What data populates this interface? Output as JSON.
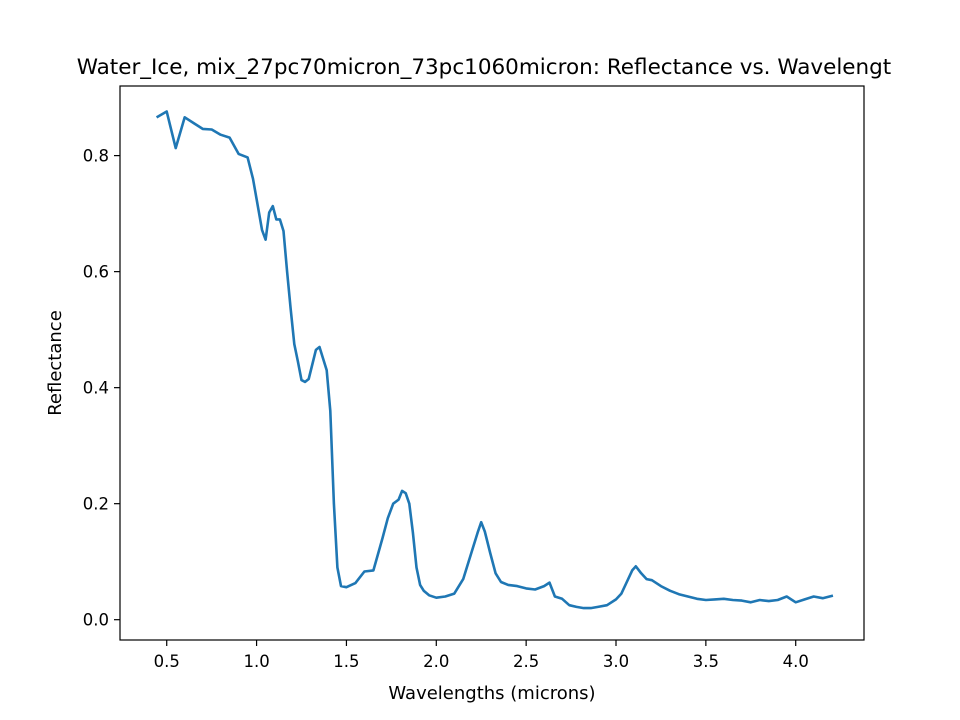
{
  "chart_data": {
    "type": "line",
    "title": "Water_Ice, mix_27pc70micron_73pc1060micron: Reflectance vs. Wavelengt",
    "xlabel": "Wavelengths (microns)",
    "ylabel": "Reflectance",
    "xlim": [
      0.24,
      4.38
    ],
    "ylim": [
      -0.035,
      0.92
    ],
    "xticks": [
      0.5,
      1.0,
      1.5,
      2.0,
      2.5,
      3.0,
      3.5,
      4.0
    ],
    "xtick_labels": [
      "0.5",
      "1.0",
      "1.5",
      "2.0",
      "2.5",
      "3.0",
      "3.5",
      "4.0"
    ],
    "yticks": [
      0.0,
      0.2,
      0.4,
      0.6,
      0.8
    ],
    "ytick_labels": [
      "0.0",
      "0.2",
      "0.4",
      "0.6",
      "0.8"
    ],
    "grid": false,
    "line_color": "#1f77b4",
    "series": [
      {
        "x": [
          0.45,
          0.5,
          0.55,
          0.6,
          0.65,
          0.7,
          0.75,
          0.8,
          0.85,
          0.9,
          0.95,
          0.98,
          1.0,
          1.03,
          1.05,
          1.07,
          1.09,
          1.11,
          1.13,
          1.15,
          1.17,
          1.19,
          1.21,
          1.23,
          1.25,
          1.27,
          1.29,
          1.31,
          1.33,
          1.35,
          1.37,
          1.39,
          1.41,
          1.43,
          1.45,
          1.47,
          1.5,
          1.55,
          1.6,
          1.65,
          1.7,
          1.73,
          1.76,
          1.79,
          1.81,
          1.83,
          1.85,
          1.87,
          1.89,
          1.91,
          1.93,
          1.96,
          2.0,
          2.05,
          2.1,
          2.15,
          2.2,
          2.23,
          2.25,
          2.27,
          2.3,
          2.33,
          2.36,
          2.4,
          2.45,
          2.5,
          2.55,
          2.6,
          2.63,
          2.66,
          2.7,
          2.74,
          2.78,
          2.82,
          2.86,
          2.9,
          2.95,
          3.0,
          3.03,
          3.06,
          3.09,
          3.11,
          3.14,
          3.17,
          3.2,
          3.25,
          3.3,
          3.35,
          3.4,
          3.45,
          3.5,
          3.55,
          3.6,
          3.65,
          3.7,
          3.75,
          3.8,
          3.85,
          3.9,
          3.95,
          4.0,
          4.05,
          4.1,
          4.15,
          4.2
        ],
        "y": [
          0.867,
          0.876,
          0.813,
          0.866,
          0.856,
          0.846,
          0.845,
          0.836,
          0.831,
          0.803,
          0.797,
          0.76,
          0.725,
          0.672,
          0.655,
          0.702,
          0.713,
          0.69,
          0.69,
          0.67,
          0.6,
          0.535,
          0.475,
          0.445,
          0.413,
          0.41,
          0.415,
          0.44,
          0.465,
          0.47,
          0.45,
          0.43,
          0.36,
          0.2,
          0.09,
          0.058,
          0.056,
          0.063,
          0.083,
          0.085,
          0.14,
          0.175,
          0.2,
          0.207,
          0.222,
          0.218,
          0.2,
          0.15,
          0.09,
          0.06,
          0.05,
          0.042,
          0.038,
          0.04,
          0.045,
          0.07,
          0.12,
          0.15,
          0.168,
          0.152,
          0.115,
          0.08,
          0.065,
          0.06,
          0.058,
          0.054,
          0.052,
          0.058,
          0.064,
          0.04,
          0.036,
          0.025,
          0.022,
          0.02,
          0.02,
          0.022,
          0.025,
          0.035,
          0.045,
          0.065,
          0.085,
          0.092,
          0.08,
          0.07,
          0.068,
          0.058,
          0.05,
          0.044,
          0.04,
          0.036,
          0.034,
          0.035,
          0.036,
          0.034,
          0.033,
          0.03,
          0.034,
          0.032,
          0.034,
          0.04,
          0.03,
          0.035,
          0.04,
          0.037,
          0.041
        ]
      }
    ]
  }
}
